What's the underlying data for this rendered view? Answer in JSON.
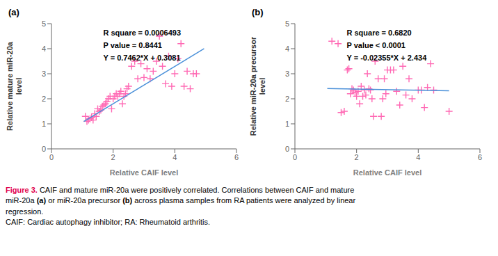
{
  "chart_data": [
    {
      "type": "scatter",
      "label": "(a)",
      "x_label": "Relative CAIF level",
      "y_label": "Relative mature miR-20a\nlevel",
      "xlim": [
        0,
        6
      ],
      "ylim": [
        0,
        5
      ],
      "xticks": [
        0,
        2,
        4,
        6
      ],
      "yticks": [
        0,
        1,
        2,
        3,
        4,
        5
      ],
      "grid": false,
      "annotations": [
        "R square = 0.0006493",
        "P value = 0.8441",
        "Y = 0.7462*X + 0.3081"
      ],
      "series": [
        {
          "type": "scatter",
          "marker": "plus",
          "color": "#FF69B4",
          "x": [
            1.1,
            1.15,
            1.2,
            1.25,
            1.3,
            1.35,
            1.4,
            1.45,
            1.5,
            1.55,
            1.6,
            1.65,
            1.7,
            1.75,
            1.8,
            1.85,
            1.9,
            1.95,
            2.0,
            2.05,
            2.1,
            2.15,
            2.2,
            2.25,
            2.3,
            2.35,
            2.4,
            2.45,
            2.5,
            2.6,
            2.7,
            2.8,
            2.9,
            3.0,
            3.1,
            3.2,
            3.3,
            3.4,
            3.5,
            3.6,
            3.7,
            3.8,
            3.9,
            4.0,
            4.1,
            4.2,
            4.3,
            4.4,
            4.5,
            4.6,
            4.7
          ],
          "values": [
            1.3,
            1.1,
            1.15,
            1.2,
            1.25,
            1.15,
            1.4,
            1.3,
            1.6,
            1.5,
            1.55,
            1.7,
            1.75,
            1.8,
            1.9,
            2.0,
            2.1,
            1.6,
            2.0,
            2.1,
            2.2,
            2.1,
            2.2,
            2.3,
            1.8,
            2.1,
            2.2,
            2.4,
            2.5,
            3.3,
            3.5,
            2.8,
            3.4,
            2.85,
            3.2,
            2.8,
            3.1,
            3.5,
            4.5,
            3.3,
            2.6,
            3.7,
            2.5,
            3.0,
            3.6,
            4.2,
            2.5,
            3.1,
            2.4,
            3.0,
            3.0
          ]
        },
        {
          "type": "line",
          "color": "#4A90D9",
          "x": [
            1.05,
            4.95
          ],
          "values": [
            1.09161,
            4.00179
          ]
        }
      ]
    },
    {
      "type": "scatter",
      "label": "(b)",
      "x_label": "Relative CAIF level",
      "y_label": "Relative miR-20a precursor\nlevel",
      "xlim": [
        0,
        6
      ],
      "ylim": [
        0,
        5
      ],
      "xticks": [
        0,
        2,
        4,
        6
      ],
      "yticks": [
        0,
        1,
        2,
        3,
        4,
        5
      ],
      "grid": false,
      "annotations": [
        "R square = 0.6820",
        "P value < 0.0001",
        "Y = -0.02355*X + 2.434"
      ],
      "series": [
        {
          "type": "scatter",
          "marker": "plus",
          "color": "#FF69B4",
          "x": [
            1.2,
            1.4,
            1.5,
            1.6,
            1.7,
            1.75,
            1.8,
            1.85,
            1.9,
            1.95,
            2.0,
            2.05,
            2.1,
            2.15,
            2.2,
            2.25,
            2.3,
            2.35,
            2.4,
            2.45,
            2.5,
            2.55,
            2.6,
            2.7,
            2.8,
            2.85,
            2.9,
            2.95,
            3.0,
            3.1,
            3.2,
            3.3,
            3.4,
            3.5,
            3.6,
            3.7,
            3.8,
            4.0,
            4.1,
            4.2,
            4.3,
            4.4,
            4.5,
            5.0
          ],
          "values": [
            4.3,
            4.2,
            1.45,
            1.5,
            3.15,
            3.2,
            2.2,
            2.4,
            2.35,
            2.25,
            2.1,
            2.3,
            1.8,
            2.5,
            2.1,
            2.35,
            2.15,
            3.0,
            2.4,
            2.35,
            2.0,
            1.3,
            3.5,
            2.8,
            1.3,
            2.0,
            2.8,
            2.2,
            3.15,
            3.15,
            3.15,
            2.3,
            1.75,
            3.3,
            2.15,
            2.8,
            2.0,
            2.35,
            2.35,
            1.65,
            2.45,
            3.4,
            2.35,
            1.5
          ]
        },
        {
          "type": "line",
          "color": "#4A90D9",
          "x": [
            1.05,
            5.0
          ],
          "values": [
            2.4092725,
            2.31625
          ]
        }
      ]
    }
  ],
  "caption": {
    "label": "Figure 3.",
    "label_color": "#E0004A",
    "lines": [
      [
        " CAIF and mature miR-20a were positively correlated. Correlations between CAIF and mature"
      ],
      [
        "miR-20a ",
        "(a)",
        " or miR-20a precursor ",
        "(b)",
        " across plasma samples from RA patients were analyzed by linear"
      ],
      [
        "regression."
      ]
    ],
    "footnote": "CAIF: Cardiac autophagy inhibitor; RA: Rheumatoid arthritis."
  }
}
